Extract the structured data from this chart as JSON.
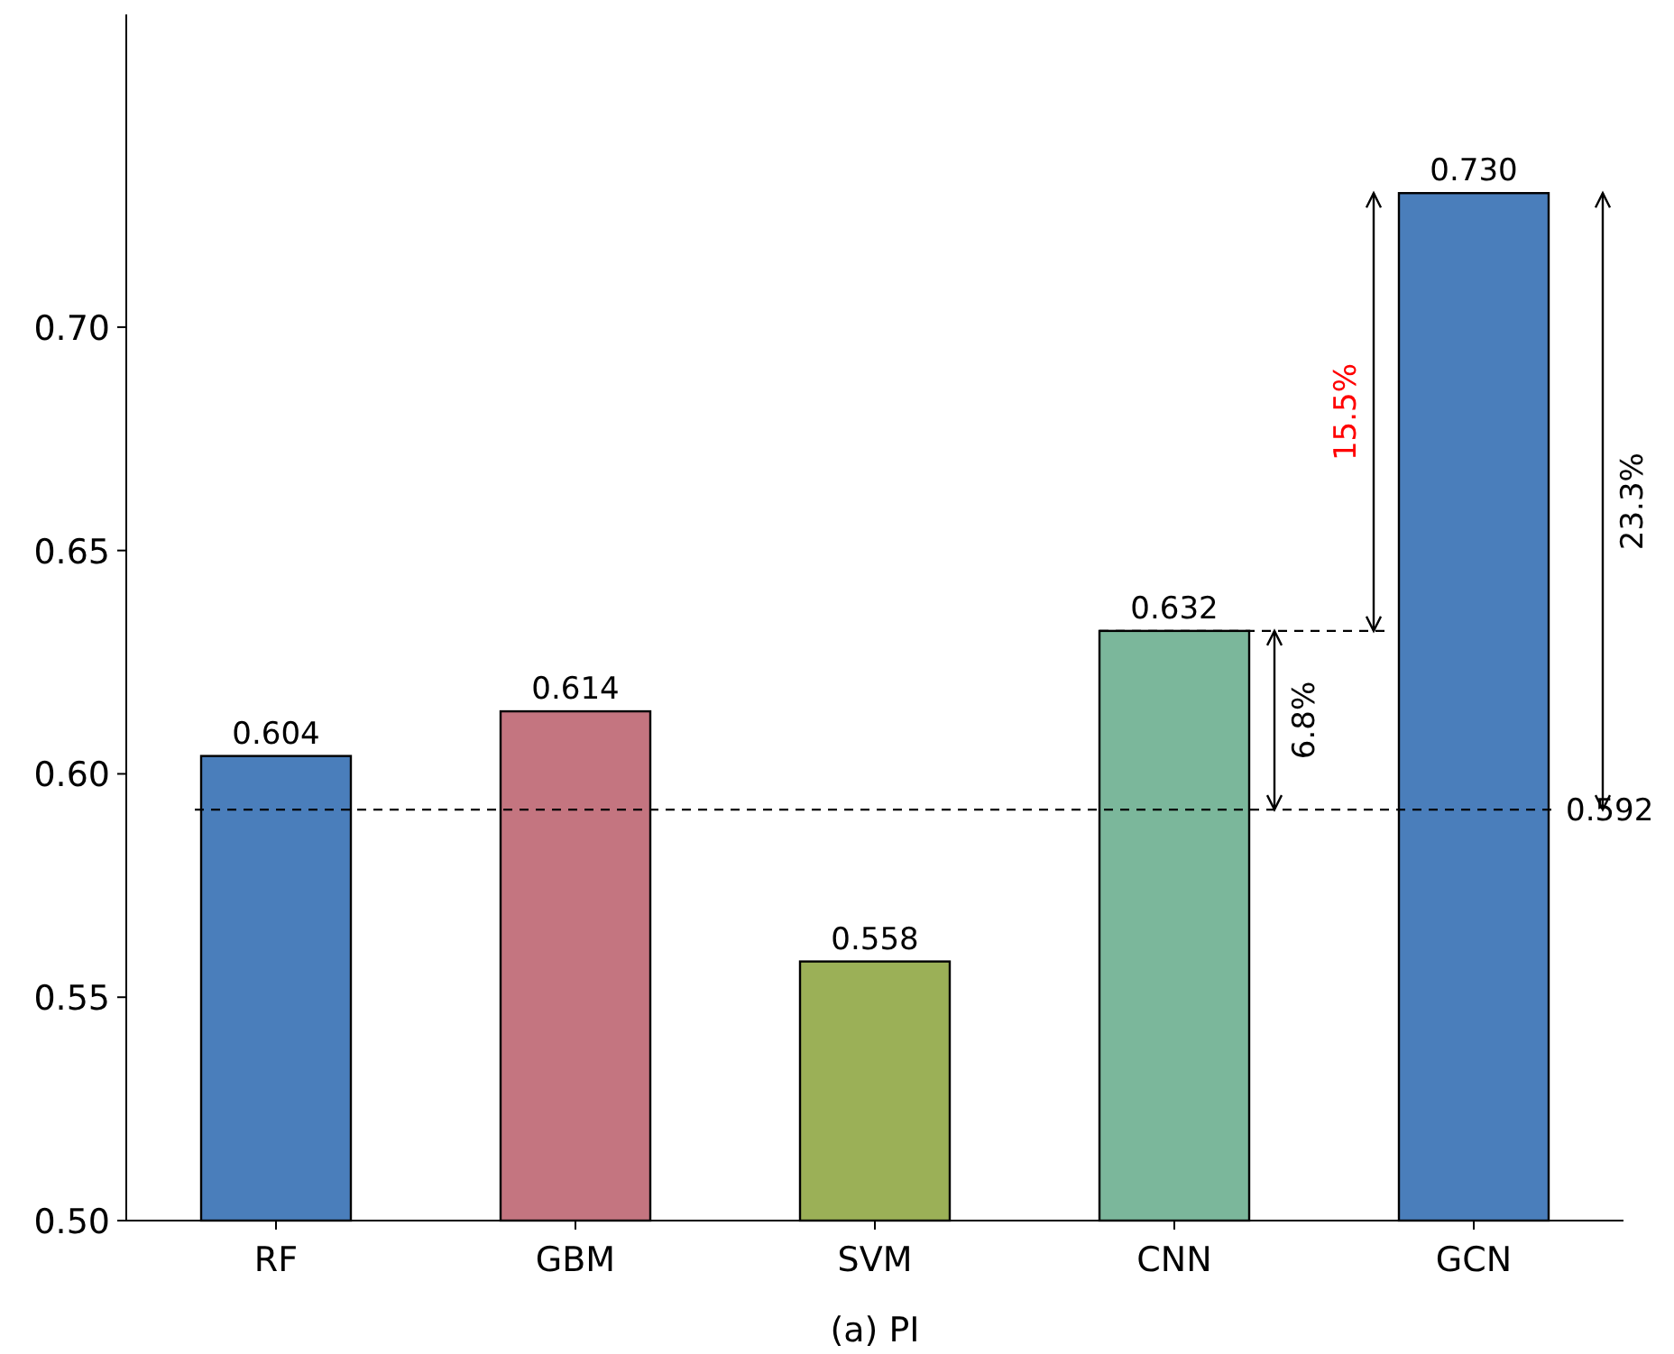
{
  "chart_data": {
    "type": "bar",
    "xlabel": "(a) PI",
    "categories": [
      "RF",
      "GBM",
      "SVM",
      "CNN",
      "GCN"
    ],
    "values": [
      0.604,
      0.614,
      0.558,
      0.632,
      0.73
    ],
    "colors": [
      "#4a7ebb",
      "#c47580",
      "#9bb057",
      "#7bb79b",
      "#4a7ebb"
    ],
    "ylim": [
      0.5,
      0.77
    ],
    "yticks": [
      {
        "value": 0.5,
        "label": "0.50"
      },
      {
        "value": 0.55,
        "label": "0.55"
      },
      {
        "value": 0.6,
        "label": "0.60"
      },
      {
        "value": 0.65,
        "label": "0.65"
      },
      {
        "value": 0.7,
        "label": "0.70"
      }
    ],
    "value_labels": [
      "0.604",
      "0.614",
      "0.558",
      "0.632",
      "0.730"
    ],
    "ref_lines": [
      {
        "axis": "y",
        "value": 0.592,
        "label": "0.592",
        "line_style": "dashed"
      },
      {
        "axis": "y",
        "value": 0.632,
        "line_style": "dashed"
      }
    ],
    "annotations": [
      "6.8%",
      "15.5%",
      "23.3%"
    ]
  }
}
